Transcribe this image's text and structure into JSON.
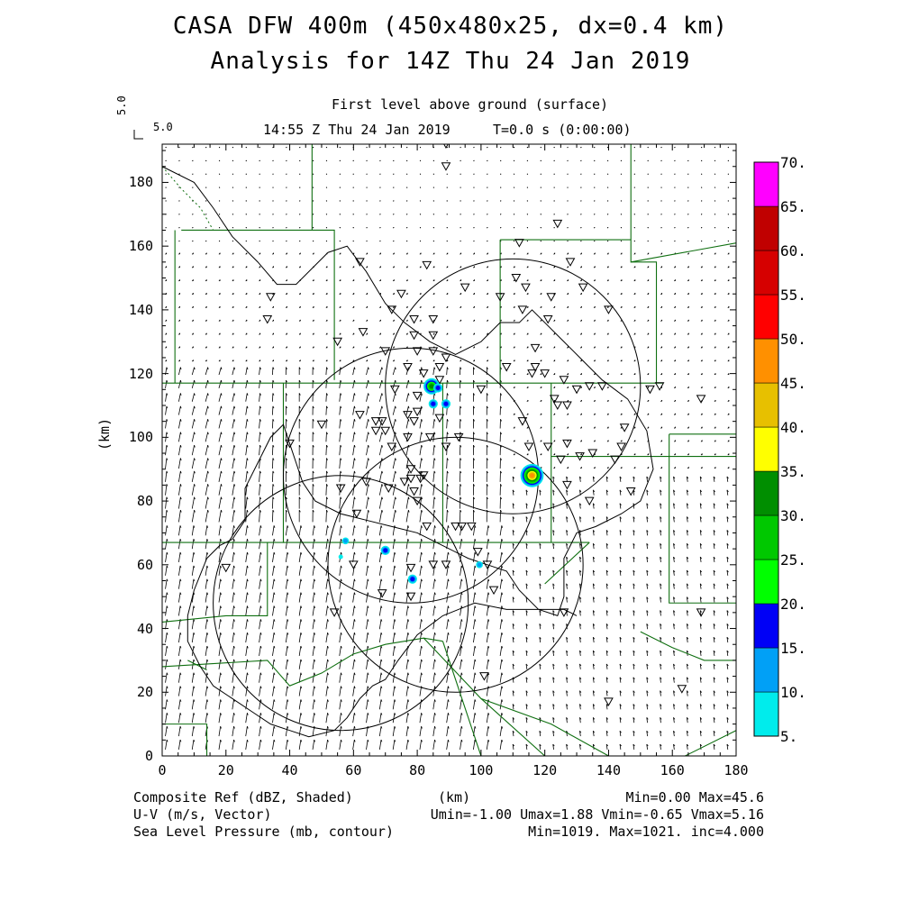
{
  "header": {
    "title_line1": "CASA DFW 400m (450x480x25, dx=0.4 km)",
    "title_line2": "Analysis for 14Z Thu 24 Jan 2019",
    "level": "First level above ground (surface)",
    "time": "14:55 Z Thu 24 Jan 2019",
    "elapsed": "T=0.0 s (0:00:00)",
    "ref_vector_label_rotated": "5.0",
    "ref_vector_label": "5.0"
  },
  "axes": {
    "x_ticks": [
      "0",
      "20",
      "40",
      "60",
      "80",
      "100",
      "120",
      "140",
      "160",
      "180"
    ],
    "y_ticks": [
      "0",
      "20",
      "40",
      "60",
      "80",
      "100",
      "120",
      "140",
      "160",
      "180"
    ],
    "x_label": "(km)",
    "y_label": "(km)",
    "xlim": [
      0,
      180
    ],
    "ylim": [
      0,
      192
    ]
  },
  "colorbar": {
    "labels": [
      "5.",
      "10.",
      "15.",
      "20.",
      "25.",
      "30.",
      "35.",
      "40.",
      "45.",
      "50.",
      "55.",
      "60.",
      "65.",
      "70."
    ],
    "colors": [
      "#00ecec",
      "#01a0f6",
      "#0000f6",
      "#00ff00",
      "#00c800",
      "#008e00",
      "#ffff00",
      "#e7c000",
      "#ff9000",
      "#ff0000",
      "#d60000",
      "#c00000",
      "#ff00ff"
    ]
  },
  "footer": {
    "field1": "Composite Ref (dBZ, Shaded)",
    "field2": "U-V (m/s, Vector)",
    "field3": "Sea Level Pressure (mb, contour)",
    "xunit": "(km)",
    "stats1": "Min=0.00 Max=45.6",
    "stats2": "Umin=-1.00 Umax=1.88 Vmin=-0.65 Vmax=5.16",
    "stats3": "Min=1019. Max=1021. inc=4.000"
  },
  "map_data": {
    "radar_rings_km": [
      {
        "cx": 110,
        "cy": 116,
        "r": 40
      },
      {
        "cx": 78,
        "cy": 88,
        "r": 40
      },
      {
        "cx": 92,
        "cy": 60,
        "r": 40
      },
      {
        "cx": 56,
        "cy": 48,
        "r": 40
      }
    ],
    "reflectivity_echoes_km": [
      {
        "x": 84.5,
        "y": 116,
        "dbz": 30
      },
      {
        "x": 86.5,
        "y": 115.5,
        "dbz": 15
      },
      {
        "x": 85,
        "y": 110.5,
        "dbz": 15
      },
      {
        "x": 89,
        "y": 110.5,
        "dbz": 15
      },
      {
        "x": 116,
        "y": 88,
        "dbz": 45
      },
      {
        "x": 57.5,
        "y": 67.5,
        "dbz": 10
      },
      {
        "x": 70,
        "y": 64.5,
        "dbz": 15
      },
      {
        "x": 78.5,
        "y": 55.5,
        "dbz": 15
      },
      {
        "x": 99.5,
        "y": 60,
        "dbz": 10
      },
      {
        "x": 56,
        "y": 62.5,
        "dbz": 5
      }
    ],
    "stations_km": [
      [
        89,
        192
      ],
      [
        89,
        185
      ],
      [
        112,
        161
      ],
      [
        124,
        167
      ],
      [
        62,
        155
      ],
      [
        75,
        145
      ],
      [
        83,
        154
      ],
      [
        128,
        155
      ],
      [
        132,
        147
      ],
      [
        34,
        144
      ],
      [
        33,
        137
      ],
      [
        63,
        133
      ],
      [
        72,
        140
      ],
      [
        79,
        137
      ],
      [
        85,
        137
      ],
      [
        79,
        132
      ],
      [
        85,
        132
      ],
      [
        95,
        147
      ],
      [
        106,
        144
      ],
      [
        111,
        150
      ],
      [
        114,
        147
      ],
      [
        113,
        140
      ],
      [
        122,
        144
      ],
      [
        121,
        137
      ],
      [
        140,
        140
      ],
      [
        70,
        127
      ],
      [
        80,
        127
      ],
      [
        85,
        127
      ],
      [
        77,
        122
      ],
      [
        82,
        120
      ],
      [
        87,
        122
      ],
      [
        89,
        125
      ],
      [
        73,
        115
      ],
      [
        80,
        113
      ],
      [
        87,
        118
      ],
      [
        108,
        122
      ],
      [
        117,
        122
      ],
      [
        116,
        120
      ],
      [
        120,
        120
      ],
      [
        117,
        128
      ],
      [
        126,
        118
      ],
      [
        130,
        115
      ],
      [
        134,
        116
      ],
      [
        138,
        116
      ],
      [
        123,
        112
      ],
      [
        124,
        110
      ],
      [
        127,
        110
      ],
      [
        153,
        115
      ],
      [
        156,
        116
      ],
      [
        169,
        112
      ],
      [
        100,
        115
      ],
      [
        80,
        108
      ],
      [
        87,
        106
      ],
      [
        50,
        104
      ],
      [
        62,
        107
      ],
      [
        67,
        105
      ],
      [
        67,
        102
      ],
      [
        69,
        105
      ],
      [
        70,
        102
      ],
      [
        77,
        107
      ],
      [
        79,
        105
      ],
      [
        72,
        97
      ],
      [
        77,
        100
      ],
      [
        84,
        100
      ],
      [
        89,
        97
      ],
      [
        93,
        100
      ],
      [
        40,
        98
      ],
      [
        113,
        105
      ],
      [
        115,
        97
      ],
      [
        121,
        97
      ],
      [
        125,
        93
      ],
      [
        127,
        98
      ],
      [
        131,
        94
      ],
      [
        135,
        95
      ],
      [
        145,
        103
      ],
      [
        142,
        93
      ],
      [
        144,
        97
      ],
      [
        147,
        83
      ],
      [
        56,
        84
      ],
      [
        64,
        86
      ],
      [
        71,
        84
      ],
      [
        76,
        86
      ],
      [
        78,
        90
      ],
      [
        82,
        88
      ],
      [
        81,
        87
      ],
      [
        78,
        87
      ],
      [
        79,
        83
      ],
      [
        80,
        80
      ],
      [
        83,
        72
      ],
      [
        92,
        72
      ],
      [
        94,
        72
      ],
      [
        97,
        72
      ],
      [
        61,
        76
      ],
      [
        127,
        85
      ],
      [
        134,
        80
      ],
      [
        85,
        60
      ],
      [
        89,
        60
      ],
      [
        99,
        64
      ],
      [
        102,
        60
      ],
      [
        78,
        59
      ],
      [
        20,
        59
      ],
      [
        69,
        51
      ],
      [
        78,
        50
      ],
      [
        60,
        60
      ],
      [
        104,
        52
      ],
      [
        126,
        45
      ],
      [
        54,
        45
      ],
      [
        101,
        25
      ],
      [
        140,
        17
      ],
      [
        163,
        21
      ],
      [
        169,
        45
      ],
      [
        55,
        130
      ]
    ],
    "pressure_contour_km": [
      [
        0,
        185
      ],
      [
        10,
        180
      ],
      [
        16,
        172
      ],
      [
        22,
        163
      ],
      [
        30,
        155
      ],
      [
        36,
        148
      ],
      [
        42,
        148
      ],
      [
        52,
        158
      ],
      [
        58,
        160
      ],
      [
        64,
        152
      ],
      [
        70,
        142
      ],
      [
        76,
        136
      ],
      [
        84,
        130
      ],
      [
        92,
        126
      ],
      [
        100,
        130
      ],
      [
        106,
        136
      ],
      [
        112,
        136
      ],
      [
        116,
        140
      ],
      [
        120,
        136
      ],
      [
        126,
        130
      ],
      [
        132,
        124
      ],
      [
        138,
        118
      ],
      [
        146,
        112
      ],
      [
        152,
        102
      ],
      [
        154,
        90
      ],
      [
        150,
        80
      ],
      [
        144,
        76
      ],
      [
        136,
        72
      ],
      [
        130,
        70
      ],
      [
        128,
        66
      ],
      [
        126,
        62
      ],
      [
        126,
        56
      ],
      [
        126,
        50
      ],
      [
        124,
        44
      ],
      [
        118,
        46
      ],
      [
        112,
        52
      ],
      [
        108,
        58
      ],
      [
        102,
        60
      ],
      [
        96,
        62
      ],
      [
        88,
        66
      ],
      [
        80,
        70
      ],
      [
        72,
        72
      ],
      [
        64,
        74
      ],
      [
        56,
        76
      ],
      [
        48,
        80
      ],
      [
        44,
        86
      ],
      [
        42,
        92
      ],
      [
        40,
        98
      ],
      [
        38,
        104
      ],
      [
        34,
        100
      ],
      [
        30,
        92
      ],
      [
        26,
        84
      ],
      [
        26,
        74
      ],
      [
        22,
        68
      ],
      [
        18,
        66
      ],
      [
        14,
        62
      ],
      [
        10,
        52
      ],
      [
        8,
        44
      ],
      [
        8,
        36
      ],
      [
        12,
        28
      ],
      [
        16,
        22
      ],
      [
        22,
        18
      ],
      [
        28,
        14
      ],
      [
        34,
        10
      ],
      [
        40,
        8
      ],
      [
        46,
        6
      ],
      [
        54,
        8
      ],
      [
        58,
        12
      ],
      [
        62,
        18
      ],
      [
        66,
        22
      ],
      [
        70,
        24
      ],
      [
        74,
        30
      ],
      [
        80,
        38
      ],
      [
        88,
        44
      ],
      [
        98,
        48
      ],
      [
        108,
        46
      ],
      [
        118,
        46
      ],
      [
        126,
        46
      ],
      [
        130,
        44
      ]
    ],
    "boundaries_km": [
      [
        [
          47,
          192
        ],
        [
          47,
          165
        ]
      ],
      [
        [
          6,
          165
        ],
        [
          54,
          165
        ],
        [
          54,
          118
        ]
      ],
      [
        [
          4,
          165
        ],
        [
          4,
          117
        ]
      ],
      [
        [
          0,
          117
        ],
        [
          157,
          117
        ]
      ],
      [
        [
          106,
          162
        ],
        [
          106,
          117
        ]
      ],
      [
        [
          106,
          162
        ],
        [
          147,
          162
        ]
      ],
      [
        [
          147,
          192
        ],
        [
          147,
          155
        ],
        [
          180,
          161
        ]
      ],
      [
        [
          147,
          155
        ],
        [
          155,
          155
        ],
        [
          155,
          117
        ]
      ],
      [
        [
          38,
          117
        ],
        [
          38,
          67
        ],
        [
          0,
          67
        ]
      ],
      [
        [
          38,
          67
        ],
        [
          134,
          67
        ]
      ],
      [
        [
          88,
          117
        ],
        [
          88,
          67
        ]
      ],
      [
        [
          122,
          117
        ],
        [
          122,
          67
        ]
      ],
      [
        [
          122,
          94
        ],
        [
          180,
          94
        ]
      ],
      [
        [
          159,
          101
        ],
        [
          180,
          101
        ]
      ],
      [
        [
          159,
          101
        ],
        [
          159,
          48
        ],
        [
          180,
          48
        ]
      ],
      [
        [
          0,
          42
        ],
        [
          20,
          44
        ],
        [
          33,
          44
        ],
        [
          33,
          67
        ]
      ],
      [
        [
          0,
          28
        ],
        [
          33,
          30
        ],
        [
          40,
          22
        ],
        [
          50,
          26
        ],
        [
          60,
          32
        ],
        [
          70,
          35
        ],
        [
          82,
          37
        ],
        [
          88,
          36
        ]
      ],
      [
        [
          82,
          37
        ],
        [
          100,
          18
        ],
        [
          122,
          10
        ],
        [
          140,
          0
        ]
      ],
      [
        [
          100,
          18
        ],
        [
          120,
          0
        ]
      ],
      [
        [
          88,
          36
        ],
        [
          100,
          0
        ]
      ],
      [
        [
          0,
          10
        ],
        [
          14,
          10
        ],
        [
          14,
          0
        ]
      ],
      [
        [
          120,
          54
        ],
        [
          134,
          67
        ]
      ],
      [
        [
          150,
          39
        ],
        [
          160,
          34
        ],
        [
          170,
          30
        ],
        [
          180,
          30
        ]
      ],
      [
        [
          164,
          0
        ],
        [
          180,
          8
        ]
      ],
      [
        [
          8,
          30
        ],
        [
          14,
          27
        ]
      ]
    ],
    "county_dotted_km": [
      [
        0,
        185
      ],
      [
        6,
        178
      ],
      [
        12,
        172
      ],
      [
        16,
        165
      ]
    ]
  }
}
